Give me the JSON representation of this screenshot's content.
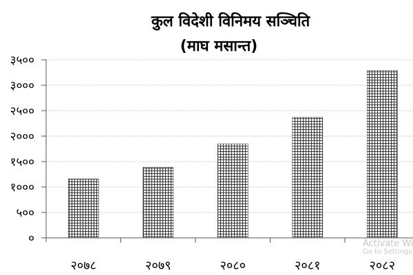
{
  "chart_data": {
    "type": "bar",
    "title": "कुल विदेशी विनिमय सञ्चिति",
    "subtitle": "(माघ मसान्त)",
    "xlabel": "",
    "ylabel": "",
    "categories": [
      "२०७८",
      "२०७९",
      "२०८०",
      "२०८१",
      "२०८२"
    ],
    "values": [
      1160,
      1390,
      1850,
      2370,
      3290
    ],
    "ylim": [
      0,
      3500
    ],
    "yticks": [
      0,
      500,
      1000,
      1500,
      2000,
      2500,
      3000,
      3500
    ],
    "ytick_labels": [
      "०",
      "५००",
      "१०००",
      "१५००",
      "२०००",
      "२५००",
      "३०००",
      "३५००"
    ],
    "grid": true,
    "legend": "none",
    "bar_fill": "crosshatch grid pattern",
    "colors": {
      "bar": "#333333",
      "grid": "#d0d0d0",
      "axis": "#555555"
    }
  },
  "watermark": {
    "line1": "Activate Windows",
    "line2": "Go to Settings"
  }
}
